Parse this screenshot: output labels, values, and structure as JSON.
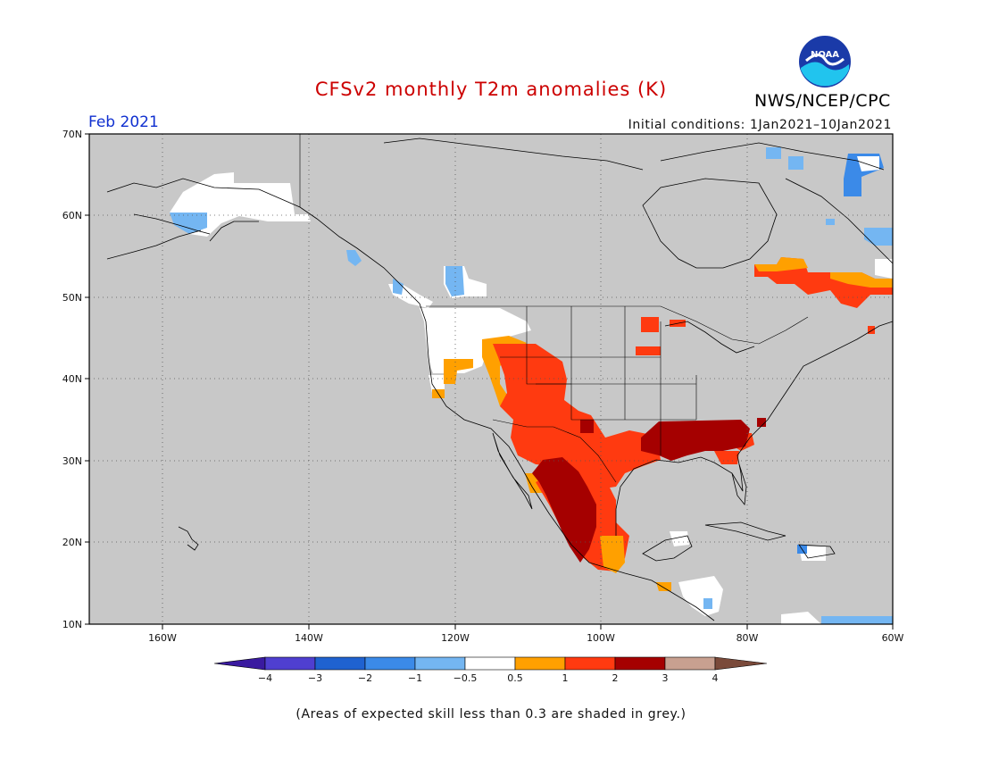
{
  "header": {
    "title": "CFSv2 monthly T2m anomalies (K)",
    "organization": "NWS/NCEP/CPC",
    "logo_text": "NOAA",
    "target_month": "Feb 2021",
    "initial_conditions": "Initial conditions: 1Jan2021–10Jan2021"
  },
  "map": {
    "region": "North America",
    "lat_labels": [
      "70N",
      "60N",
      "50N",
      "40N",
      "30N",
      "20N",
      "10N"
    ],
    "lon_labels": [
      "160W",
      "140W",
      "120W",
      "100W",
      "80W",
      "60W"
    ],
    "background_color": "#c8c8c8",
    "grid": "dotted"
  },
  "colorbar": {
    "ticks": [
      "−4",
      "−3",
      "−2",
      "−1",
      "−0.5",
      "0.5",
      "1",
      "2",
      "3",
      "4"
    ],
    "colors": [
      "#3a1aa0",
      "#4f3fd0",
      "#1f62d0",
      "#3b8ae8",
      "#74b6f2",
      "#ffffff",
      "#ffa000",
      "#ff3a10",
      "#a50000",
      "#c8a090",
      "#7a4a3a"
    ]
  },
  "footnote": "(Areas of expected skill less than 0.3 are shaded in grey.)"
}
